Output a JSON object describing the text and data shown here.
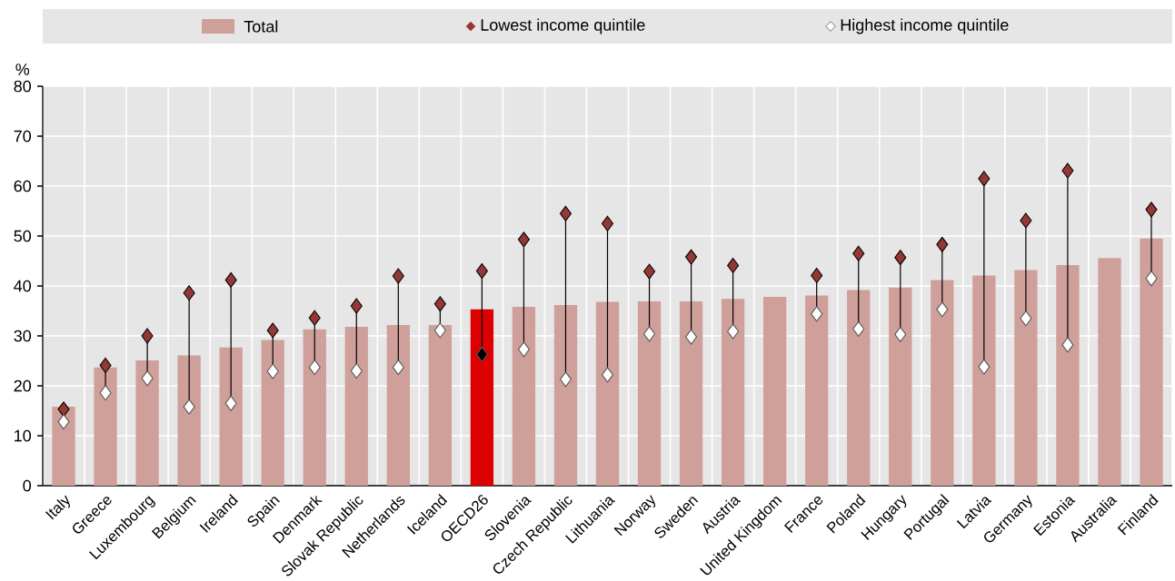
{
  "chart_data": {
    "type": "bar",
    "ylabel": "%",
    "ylim": [
      0,
      80
    ],
    "yticks": [
      0,
      10,
      20,
      30,
      40,
      50,
      60,
      70,
      80
    ],
    "grid": true,
    "legend": "top",
    "marker": "diamond",
    "categories": [
      "Italy",
      "Greece",
      "Luxembourg",
      "Belgium",
      "Ireland",
      "Spain",
      "Denmark",
      "Slovak Republic",
      "Netherlands",
      "Iceland",
      "OECD26",
      "Slovenia",
      "Czech Republic",
      "Lithuania",
      "Norway",
      "Sweden",
      "Austria",
      "United Kingdom",
      "France",
      "Poland",
      "Hungary",
      "Portugal",
      "Latvia",
      "Germany",
      "Estonia",
      "Australia",
      "Finland"
    ],
    "series": [
      {
        "name": "Total",
        "color": "#cfa09a",
        "colors": [
          "#cfa09a",
          "#cfa09a",
          "#cfa09a",
          "#cfa09a",
          "#cfa09a",
          "#cfa09a",
          "#cfa09a",
          "#cfa09a",
          "#cfa09a",
          "#cfa09a",
          "#dd0000",
          "#cfa09a",
          "#cfa09a",
          "#cfa09a",
          "#cfa09a",
          "#cfa09a",
          "#cfa09a",
          "#cfa09a",
          "#cfa09a",
          "#cfa09a",
          "#cfa09a",
          "#cfa09a",
          "#cfa09a",
          "#cfa09a",
          "#cfa09a",
          "#cfa09a",
          "#cfa09a"
        ],
        "values": [
          15.8,
          23.7,
          25.1,
          26.1,
          27.7,
          29.2,
          31.3,
          31.8,
          32.2,
          32.2,
          35.3,
          35.8,
          36.2,
          36.8,
          36.9,
          36.9,
          37.4,
          37.8,
          38.1,
          39.2,
          39.7,
          41.2,
          42.1,
          43.2,
          44.2,
          45.6,
          49.5
        ]
      },
      {
        "name": "Lowest income quintile",
        "type": "scatter",
        "color": "#953735",
        "values": [
          15.3,
          24.1,
          30.0,
          38.6,
          41.2,
          31.1,
          33.6,
          36.0,
          42.0,
          36.4,
          43.0,
          49.3,
          54.5,
          52.5,
          42.9,
          45.8,
          44.1,
          null,
          42.1,
          46.5,
          45.7,
          48.3,
          61.5,
          53.1,
          63.1,
          null,
          55.3
        ]
      },
      {
        "name": "Highest income quintile",
        "type": "scatter",
        "color": "#ffffff",
        "colors": [
          "#ffffff",
          "#ffffff",
          "#ffffff",
          "#ffffff",
          "#ffffff",
          "#ffffff",
          "#ffffff",
          "#ffffff",
          "#ffffff",
          "#ffffff",
          "#000000",
          "#ffffff",
          "#ffffff",
          "#ffffff",
          "#ffffff",
          "#ffffff",
          "#ffffff",
          "#ffffff",
          "#ffffff",
          "#ffffff",
          "#ffffff",
          "#ffffff",
          "#ffffff",
          "#ffffff",
          "#ffffff",
          "#ffffff",
          "#ffffff"
        ],
        "values": [
          12.8,
          18.6,
          21.5,
          15.8,
          16.5,
          22.9,
          23.7,
          23.0,
          23.7,
          31.1,
          26.3,
          27.3,
          21.3,
          22.2,
          30.4,
          29.8,
          30.9,
          null,
          34.4,
          31.4,
          30.3,
          35.3,
          23.8,
          33.5,
          28.2,
          null,
          41.5
        ]
      }
    ]
  }
}
